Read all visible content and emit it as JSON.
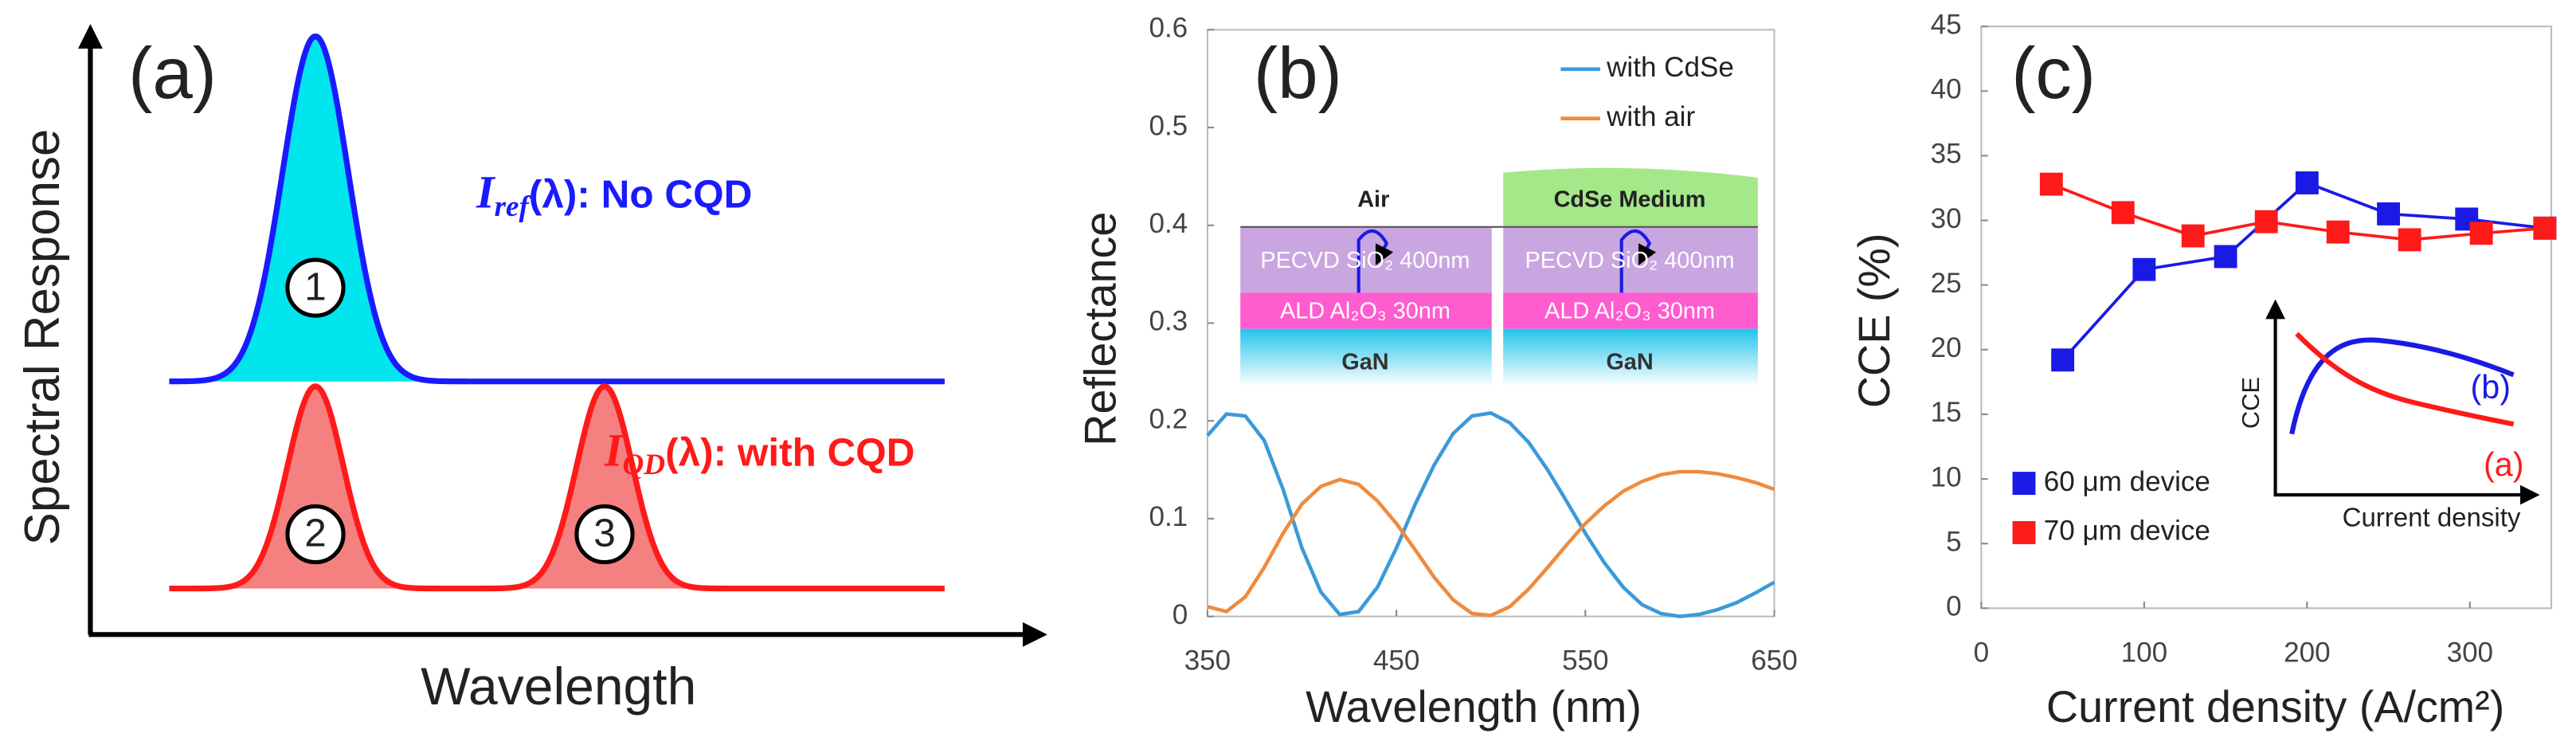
{
  "chart_data": [
    {
      "type": "schematic",
      "panel_label": "(a)",
      "xlabel": "Wavelength",
      "ylabel": "Spectral Response",
      "curves": [
        {
          "symbol": "I",
          "subscript": "ref",
          "text": "(λ): No CQD",
          "color": "#1a1aff"
        },
        {
          "symbol": "I",
          "subscript": "QD",
          "text": "(λ): with CQD",
          "color": "#ff1a1a"
        }
      ],
      "peak_labels": [
        "1",
        "2",
        "3"
      ]
    },
    {
      "type": "line",
      "panel_label": "(b)",
      "xlabel": "Wavelength (nm)",
      "ylabel": "Reflectance",
      "x": [
        350,
        360,
        370,
        380,
        390,
        400,
        410,
        420,
        430,
        440,
        450,
        460,
        470,
        480,
        490,
        500,
        510,
        520,
        530,
        540,
        550,
        560,
        570,
        580,
        590,
        600,
        610,
        620,
        630,
        640,
        650
      ],
      "series": [
        {
          "name": "with CdSe",
          "color": "#3a9ad9",
          "values": [
            0.185,
            0.207,
            0.205,
            0.18,
            0.13,
            0.07,
            0.025,
            0.002,
            0.005,
            0.03,
            0.07,
            0.115,
            0.155,
            0.187,
            0.205,
            0.208,
            0.198,
            0.178,
            0.15,
            0.118,
            0.085,
            0.055,
            0.03,
            0.012,
            0.003,
            0.0,
            0.002,
            0.007,
            0.014,
            0.024,
            0.035
          ]
        },
        {
          "name": "with air",
          "color": "#f08a3c",
          "values": [
            0.01,
            0.005,
            0.02,
            0.05,
            0.085,
            0.115,
            0.133,
            0.14,
            0.135,
            0.118,
            0.095,
            0.068,
            0.04,
            0.017,
            0.003,
            0.001,
            0.01,
            0.028,
            0.05,
            0.073,
            0.095,
            0.113,
            0.128,
            0.138,
            0.145,
            0.148,
            0.148,
            0.146,
            0.142,
            0.137,
            0.13
          ]
        }
      ],
      "xlim": [
        350,
        650
      ],
      "xticks": [
        350,
        450,
        550,
        650
      ],
      "ylim": [
        0,
        0.6
      ],
      "yticks": [
        0,
        0.1,
        0.2,
        0.3,
        0.4,
        0.5,
        0.6
      ],
      "legend": "upper right",
      "inset": {
        "left_top": "Air",
        "right_top": "CdSe Medium",
        "layers": [
          "PECVD SiO₂ 400nm",
          "ALD Al₂O₃ 30nm",
          "GaN"
        ]
      }
    },
    {
      "type": "line-marker",
      "panel_label": "(c)",
      "xlabel": "Current density (A/cm²)",
      "ylabel": "CCE (%)",
      "series": [
        {
          "name": "60 μm device",
          "color": "#1a1ae6",
          "marker": "square",
          "x": [
            50,
            100,
            150,
            200,
            250,
            298,
            346
          ],
          "values": [
            19.2,
            26.2,
            27.2,
            32.9,
            30.5,
            30.1,
            29.4
          ]
        },
        {
          "name": "70 μm device",
          "color": "#ff1a1a",
          "marker": "square",
          "x": [
            43,
            87,
            130,
            175,
            219,
            263,
            307,
            346
          ],
          "values": [
            32.8,
            30.6,
            28.8,
            29.9,
            29.1,
            28.5,
            29,
            29.4
          ]
        }
      ],
      "xlim": [
        0,
        350
      ],
      "xticks": [
        0,
        100,
        200,
        300
      ],
      "ylim": [
        0,
        45
      ],
      "yticks": [
        0,
        5,
        10,
        15,
        20,
        25,
        30,
        35,
        40,
        45
      ],
      "legend": "lower left",
      "inset": {
        "ylabel": "CCE",
        "xlabel": "Current density",
        "curve_labels": [
          "(b)",
          "(a)"
        ]
      }
    }
  ]
}
